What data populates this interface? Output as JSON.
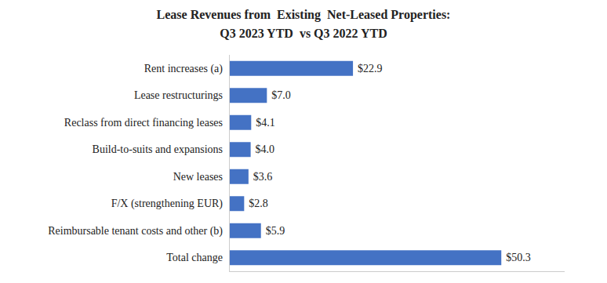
{
  "chart_data": {
    "type": "bar",
    "orientation": "horizontal",
    "title": "Lease Revenues from  Existing  Net-Leased Properties:",
    "subtitle": "Q3 2023 YTD  vs Q3 2022 YTD",
    "categories": [
      "Total change",
      "Reimbursable tenant costs and other (b)",
      "F/X (strengthening EUR)",
      "New leases",
      "Build-to-suits and expansions",
      "Reclass from direct financing leases",
      "Lease restructurings",
      "Rent increases (a)"
    ],
    "values": [
      50.3,
      5.9,
      2.8,
      3.6,
      4.0,
      4.1,
      7.0,
      22.9
    ],
    "value_labels": [
      "$50.3",
      "$5.9",
      "$2.8",
      "$3.6",
      "$4.0",
      "$4.1",
      "$7.0",
      "$22.9"
    ],
    "data_labels": true,
    "color": "#4472C4",
    "xlim": [
      0,
      62
    ],
    "tick_labels": "y",
    "grid": false
  }
}
